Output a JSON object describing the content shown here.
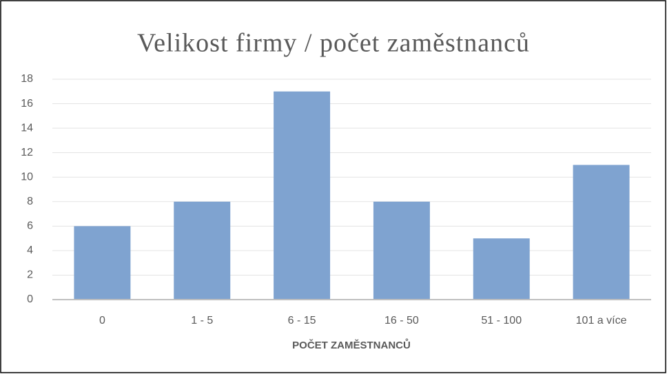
{
  "chart_data": {
    "type": "bar",
    "title": "Velikost firmy / počet zaměstnanců",
    "x_label": "POČET ZAMĚSTNANCŮ",
    "categories": [
      "0",
      "1 - 5",
      "6 - 15",
      "16 - 50",
      "51 - 100",
      "101 a více"
    ],
    "values": [
      6,
      8,
      17,
      8,
      5,
      11
    ],
    "color": "#7fa3d0",
    "ylim": [
      0,
      18
    ],
    "yticks": [
      0,
      2,
      4,
      6,
      8,
      10,
      12,
      14,
      16,
      18
    ],
    "grid": true
  }
}
